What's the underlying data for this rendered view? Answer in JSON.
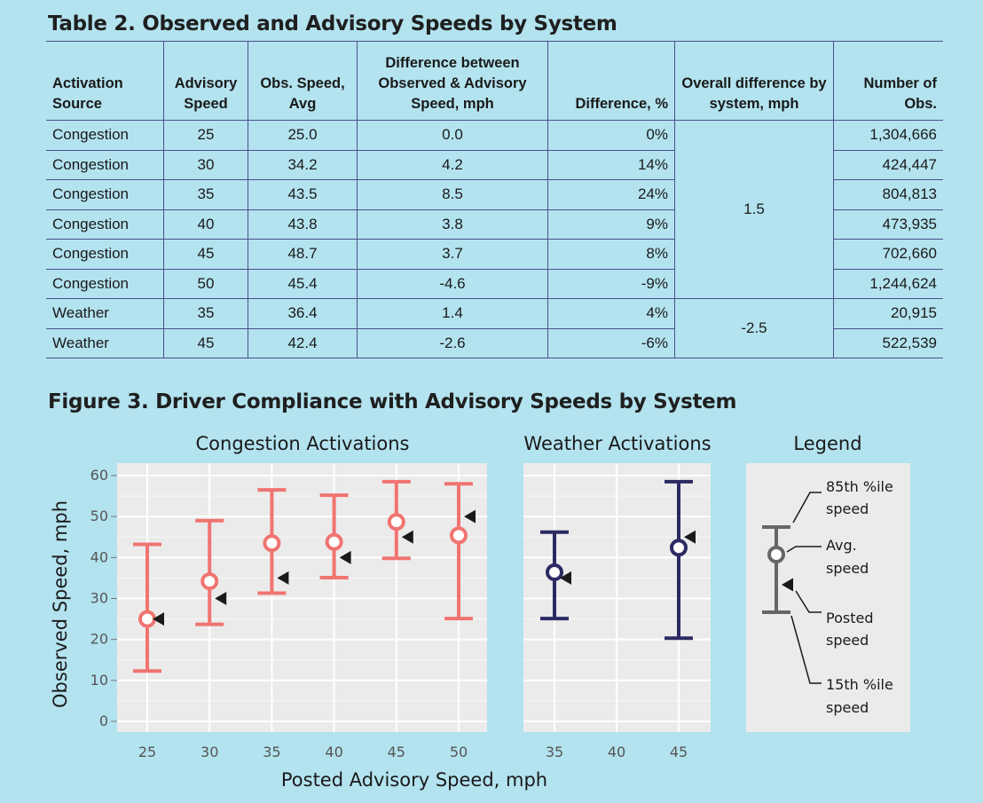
{
  "table": {
    "title": "Table 2. Observed and Advisory Speeds by System",
    "headers": [
      "Activation Source",
      "Advisory Speed",
      "Obs. Speed, Avg",
      "Difference between Observed & Advisory Speed, mph",
      "Difference, %",
      "Overall difference by system, mph",
      "Number of Obs."
    ],
    "rows": [
      [
        "Congestion",
        "25",
        "25.0",
        "0.0",
        "0%",
        "1,304,666"
      ],
      [
        "Congestion",
        "30",
        "34.2",
        "4.2",
        "14%",
        "424,447"
      ],
      [
        "Congestion",
        "35",
        "43.5",
        "8.5",
        "24%",
        "804,813"
      ],
      [
        "Congestion",
        "40",
        "43.8",
        "3.8",
        "9%",
        "473,935"
      ],
      [
        "Congestion",
        "45",
        "48.7",
        "3.7",
        "8%",
        "702,660"
      ],
      [
        "Congestion",
        "50",
        "45.4",
        "-4.6",
        "-9%",
        "1,244,624"
      ],
      [
        "Weather",
        "35",
        "36.4",
        "1.4",
        "4%",
        "20,915"
      ],
      [
        "Weather",
        "45",
        "42.4",
        "-2.6",
        "-6%",
        "522,539"
      ]
    ],
    "overall": {
      "congestion": "1.5",
      "weather": "-2.5"
    }
  },
  "chart_data": {
    "type": "scatter",
    "title": "Figure 3. Driver Compliance with Advisory Speeds by System",
    "xlabel": "Posted Advisory Speed, mph",
    "ylabel": "Observed Speed, mph",
    "ylim": [
      0,
      60
    ],
    "yticks": [
      0,
      10,
      20,
      30,
      40,
      50,
      60
    ],
    "grid": true,
    "panels": [
      {
        "name": "Congestion Activations",
        "color": "#f07470",
        "xticks": [
          25,
          30,
          35,
          40,
          45,
          50
        ],
        "points": [
          {
            "x": 25,
            "p15": 12.3,
            "avg": 25.0,
            "p85": 43.2,
            "posted": 25
          },
          {
            "x": 30,
            "p15": 23.7,
            "avg": 34.2,
            "p85": 49.0,
            "posted": 30
          },
          {
            "x": 35,
            "p15": 31.3,
            "avg": 43.5,
            "p85": 56.5,
            "posted": 35
          },
          {
            "x": 40,
            "p15": 35.1,
            "avg": 43.8,
            "p85": 55.2,
            "posted": 40
          },
          {
            "x": 45,
            "p15": 39.8,
            "avg": 48.7,
            "p85": 58.5,
            "posted": 45
          },
          {
            "x": 50,
            "p15": 25.1,
            "avg": 45.4,
            "p85": 58.0,
            "posted": 50
          }
        ]
      },
      {
        "name": "Weather Activations",
        "color": "#2c2a63",
        "xticks": [
          35,
          40,
          45
        ],
        "points": [
          {
            "x": 35,
            "p15": 25.1,
            "avg": 36.4,
            "p85": 46.2,
            "posted": 35
          },
          {
            "x": 45,
            "p15": 20.3,
            "avg": 42.4,
            "p85": 58.5,
            "posted": 45
          }
        ]
      }
    ],
    "legend": {
      "title": "Legend",
      "items": [
        "85th %ile speed",
        "Avg. speed",
        "Posted speed",
        "15th %ile speed"
      ]
    }
  }
}
